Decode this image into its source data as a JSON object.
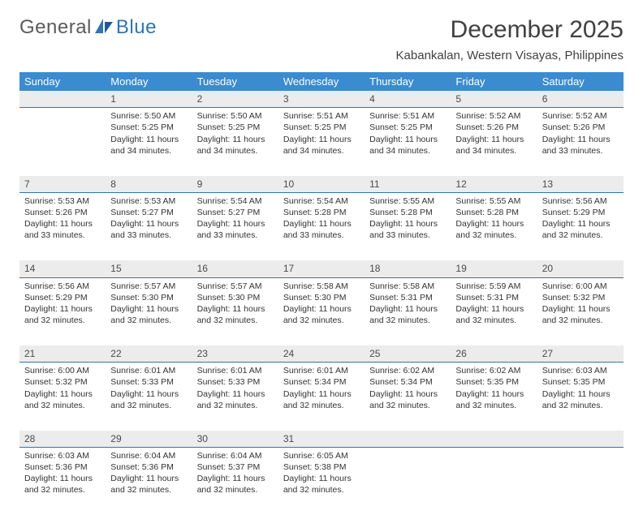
{
  "brand": {
    "part1": "General",
    "part2": "Blue"
  },
  "title": "December 2025",
  "subtitle": "Kabankalan, Western Visayas, Philippines",
  "colors": {
    "header_bg": "#3a8bd0",
    "header_text": "#ffffff",
    "daynum_bg": "#ececec",
    "daynum_border": "#2e75b6",
    "body_text": "#333333",
    "title_text": "#404040",
    "logo_gray": "#5b5b5b",
    "logo_blue": "#2e75b6",
    "page_bg": "#ffffff"
  },
  "typography": {
    "title_fontsize": 30,
    "subtitle_fontsize": 15,
    "header_fontsize": 13,
    "daynum_fontsize": 12,
    "cell_fontsize": 10.5
  },
  "day_headers": [
    "Sunday",
    "Monday",
    "Tuesday",
    "Wednesday",
    "Thursday",
    "Friday",
    "Saturday"
  ],
  "weeks": [
    {
      "nums": [
        "",
        "1",
        "2",
        "3",
        "4",
        "5",
        "6"
      ],
      "cells": [
        null,
        {
          "sunrise": "Sunrise: 5:50 AM",
          "sunset": "Sunset: 5:25 PM",
          "day1": "Daylight: 11 hours",
          "day2": "and 34 minutes."
        },
        {
          "sunrise": "Sunrise: 5:50 AM",
          "sunset": "Sunset: 5:25 PM",
          "day1": "Daylight: 11 hours",
          "day2": "and 34 minutes."
        },
        {
          "sunrise": "Sunrise: 5:51 AM",
          "sunset": "Sunset: 5:25 PM",
          "day1": "Daylight: 11 hours",
          "day2": "and 34 minutes."
        },
        {
          "sunrise": "Sunrise: 5:51 AM",
          "sunset": "Sunset: 5:25 PM",
          "day1": "Daylight: 11 hours",
          "day2": "and 34 minutes."
        },
        {
          "sunrise": "Sunrise: 5:52 AM",
          "sunset": "Sunset: 5:26 PM",
          "day1": "Daylight: 11 hours",
          "day2": "and 34 minutes."
        },
        {
          "sunrise": "Sunrise: 5:52 AM",
          "sunset": "Sunset: 5:26 PM",
          "day1": "Daylight: 11 hours",
          "day2": "and 33 minutes."
        }
      ]
    },
    {
      "nums": [
        "7",
        "8",
        "9",
        "10",
        "11",
        "12",
        "13"
      ],
      "cells": [
        {
          "sunrise": "Sunrise: 5:53 AM",
          "sunset": "Sunset: 5:26 PM",
          "day1": "Daylight: 11 hours",
          "day2": "and 33 minutes."
        },
        {
          "sunrise": "Sunrise: 5:53 AM",
          "sunset": "Sunset: 5:27 PM",
          "day1": "Daylight: 11 hours",
          "day2": "and 33 minutes."
        },
        {
          "sunrise": "Sunrise: 5:54 AM",
          "sunset": "Sunset: 5:27 PM",
          "day1": "Daylight: 11 hours",
          "day2": "and 33 minutes."
        },
        {
          "sunrise": "Sunrise: 5:54 AM",
          "sunset": "Sunset: 5:28 PM",
          "day1": "Daylight: 11 hours",
          "day2": "and 33 minutes."
        },
        {
          "sunrise": "Sunrise: 5:55 AM",
          "sunset": "Sunset: 5:28 PM",
          "day1": "Daylight: 11 hours",
          "day2": "and 33 minutes."
        },
        {
          "sunrise": "Sunrise: 5:55 AM",
          "sunset": "Sunset: 5:28 PM",
          "day1": "Daylight: 11 hours",
          "day2": "and 32 minutes."
        },
        {
          "sunrise": "Sunrise: 5:56 AM",
          "sunset": "Sunset: 5:29 PM",
          "day1": "Daylight: 11 hours",
          "day2": "and 32 minutes."
        }
      ]
    },
    {
      "nums": [
        "14",
        "15",
        "16",
        "17",
        "18",
        "19",
        "20"
      ],
      "cells": [
        {
          "sunrise": "Sunrise: 5:56 AM",
          "sunset": "Sunset: 5:29 PM",
          "day1": "Daylight: 11 hours",
          "day2": "and 32 minutes."
        },
        {
          "sunrise": "Sunrise: 5:57 AM",
          "sunset": "Sunset: 5:30 PM",
          "day1": "Daylight: 11 hours",
          "day2": "and 32 minutes."
        },
        {
          "sunrise": "Sunrise: 5:57 AM",
          "sunset": "Sunset: 5:30 PM",
          "day1": "Daylight: 11 hours",
          "day2": "and 32 minutes."
        },
        {
          "sunrise": "Sunrise: 5:58 AM",
          "sunset": "Sunset: 5:30 PM",
          "day1": "Daylight: 11 hours",
          "day2": "and 32 minutes."
        },
        {
          "sunrise": "Sunrise: 5:58 AM",
          "sunset": "Sunset: 5:31 PM",
          "day1": "Daylight: 11 hours",
          "day2": "and 32 minutes."
        },
        {
          "sunrise": "Sunrise: 5:59 AM",
          "sunset": "Sunset: 5:31 PM",
          "day1": "Daylight: 11 hours",
          "day2": "and 32 minutes."
        },
        {
          "sunrise": "Sunrise: 6:00 AM",
          "sunset": "Sunset: 5:32 PM",
          "day1": "Daylight: 11 hours",
          "day2": "and 32 minutes."
        }
      ]
    },
    {
      "nums": [
        "21",
        "22",
        "23",
        "24",
        "25",
        "26",
        "27"
      ],
      "cells": [
        {
          "sunrise": "Sunrise: 6:00 AM",
          "sunset": "Sunset: 5:32 PM",
          "day1": "Daylight: 11 hours",
          "day2": "and 32 minutes."
        },
        {
          "sunrise": "Sunrise: 6:01 AM",
          "sunset": "Sunset: 5:33 PM",
          "day1": "Daylight: 11 hours",
          "day2": "and 32 minutes."
        },
        {
          "sunrise": "Sunrise: 6:01 AM",
          "sunset": "Sunset: 5:33 PM",
          "day1": "Daylight: 11 hours",
          "day2": "and 32 minutes."
        },
        {
          "sunrise": "Sunrise: 6:01 AM",
          "sunset": "Sunset: 5:34 PM",
          "day1": "Daylight: 11 hours",
          "day2": "and 32 minutes."
        },
        {
          "sunrise": "Sunrise: 6:02 AM",
          "sunset": "Sunset: 5:34 PM",
          "day1": "Daylight: 11 hours",
          "day2": "and 32 minutes."
        },
        {
          "sunrise": "Sunrise: 6:02 AM",
          "sunset": "Sunset: 5:35 PM",
          "day1": "Daylight: 11 hours",
          "day2": "and 32 minutes."
        },
        {
          "sunrise": "Sunrise: 6:03 AM",
          "sunset": "Sunset: 5:35 PM",
          "day1": "Daylight: 11 hours",
          "day2": "and 32 minutes."
        }
      ]
    },
    {
      "nums": [
        "28",
        "29",
        "30",
        "31",
        "",
        "",
        ""
      ],
      "cells": [
        {
          "sunrise": "Sunrise: 6:03 AM",
          "sunset": "Sunset: 5:36 PM",
          "day1": "Daylight: 11 hours",
          "day2": "and 32 minutes."
        },
        {
          "sunrise": "Sunrise: 6:04 AM",
          "sunset": "Sunset: 5:36 PM",
          "day1": "Daylight: 11 hours",
          "day2": "and 32 minutes."
        },
        {
          "sunrise": "Sunrise: 6:04 AM",
          "sunset": "Sunset: 5:37 PM",
          "day1": "Daylight: 11 hours",
          "day2": "and 32 minutes."
        },
        {
          "sunrise": "Sunrise: 6:05 AM",
          "sunset": "Sunset: 5:38 PM",
          "day1": "Daylight: 11 hours",
          "day2": "and 32 minutes."
        },
        null,
        null,
        null
      ]
    }
  ]
}
